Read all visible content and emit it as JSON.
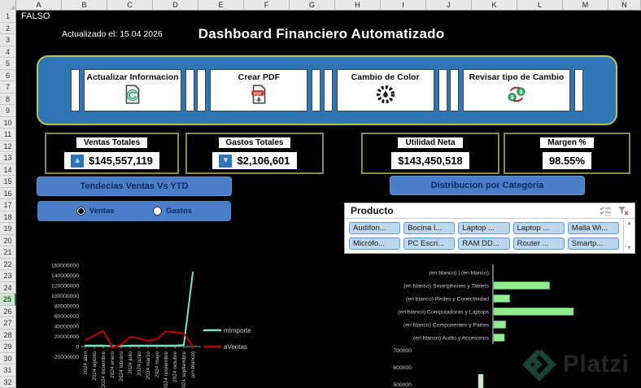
{
  "spreadsheet": {
    "columns": [
      "A",
      "B",
      "C",
      "D",
      "E",
      "F",
      "G",
      "H",
      "I",
      "J",
      "K",
      "L",
      "M",
      "N"
    ],
    "rows": [
      1,
      2,
      3,
      4,
      5,
      6,
      7,
      8,
      9,
      10,
      11,
      12,
      13,
      14,
      15,
      16,
      17,
      18,
      19,
      20,
      21,
      22,
      23,
      24,
      25,
      26,
      27,
      28,
      29,
      30,
      31,
      32
    ],
    "selected_row": 25
  },
  "header": {
    "cell_a1": "FALSO",
    "updated_label": "Actualizado el: 15 04 2026",
    "title": "Dashboard Financiero Automatizado"
  },
  "toolbar": {
    "buttons": [
      {
        "label": "Actualizar Informacion",
        "icon": "refresh-document-icon"
      },
      {
        "label": "Crear PDF",
        "icon": "pdf-download-icon"
      },
      {
        "label": "Cambio de Color",
        "icon": "color-wheel-icon"
      },
      {
        "label": "Revisar tipo de Cambio",
        "icon": "currency-exchange-icon"
      }
    ]
  },
  "kpis": [
    {
      "label": "Ventas Totales",
      "value": "$145,557,119",
      "trend": "up"
    },
    {
      "label": "Gastos Totales",
      "value": "$2,106,601",
      "trend": "down"
    },
    {
      "label": "Utilidad Neta",
      "value": "$143,450,518",
      "trend": "none"
    },
    {
      "label": "Margen %",
      "value": "98.55%",
      "trend": "none"
    }
  ],
  "nav_buttons": {
    "left": "Tendecias Ventas Vs YTD",
    "right": "Distribucion por Categoria"
  },
  "series_toggle": {
    "options": [
      {
        "label": "Ventas",
        "selected": true
      },
      {
        "label": "Gastos",
        "selected": false
      }
    ]
  },
  "slicer": {
    "title": "Producto",
    "items": [
      "Audífon...",
      "Bocina I...",
      "Laptop ...",
      "Laptop ...",
      "Malla Wi...",
      "Micrófo...",
      "PC Escri...",
      "RAM DD...",
      "Router ...",
      "Smartp..."
    ]
  },
  "watermark": {
    "text": "Platzi"
  },
  "colors": {
    "dashboard_bg": "#000000",
    "panel_blue": "#2e75b6",
    "panel_border": "#b5c74d",
    "button_blue": "#4a7ec8",
    "kpi_border": "#8b8b3d",
    "slicer_item_bg": "#bdd7ee",
    "line_importe": "#79e2c2",
    "line_ventas": "#c00000",
    "bar_green": "#90ee90",
    "column_green": "#cdeccd"
  },
  "chart_data": [
    {
      "type": "line",
      "title": "",
      "xlabel": "",
      "ylabel": "",
      "categories": [
        "2024 abril",
        "2024 agosto",
        "2024 diciembre",
        "2024 enero",
        "2024 febrero",
        "2024 julio",
        "2024 junio",
        "2024 marzo",
        "2024 mayo",
        "2024 noviembre",
        "2024 octubre",
        "2024 septiembre",
        "(en blanco)"
      ],
      "series": [
        {
          "name": "mImporte",
          "color": "#79e2c2",
          "values": [
            2000000,
            2000000,
            2000000,
            1000000,
            1000000,
            2000000,
            2000000,
            2000000,
            2000000,
            2000000,
            2000000,
            3000000,
            145557119
          ]
        },
        {
          "name": "aVentas",
          "color": "#c00000",
          "values": [
            12000000,
            22000000,
            31000000,
            -2000000,
            4000000,
            19000000,
            16000000,
            11000000,
            15000000,
            30000000,
            28000000,
            26000000,
            0
          ]
        }
      ],
      "ylim": [
        -20000000,
        160000000
      ],
      "ytick_step": 20000000,
      "grid": false,
      "legend_position": "right"
    },
    {
      "type": "bar",
      "orientation": "horizontal",
      "title": "",
      "categories": [
        "(en blanco) | (en blanco)",
        "(en blanco) Smartphones y Tablets",
        "(en blanco) Redes y Conectividad",
        "(en blanco) Computadoras y Laptops",
        "(en blanco) Componentes y Partes",
        "(en blanco) Audio y Accesorios"
      ],
      "values": [
        0,
        42000000,
        12000000,
        60000000,
        9000000,
        8000000
      ],
      "color": "#90ee90",
      "grid": false
    },
    {
      "type": "bar",
      "orientation": "vertical",
      "title": "",
      "categories": [
        ""
      ],
      "values": [
        571000
      ],
      "yticks": [
        700000,
        600000,
        500000
      ],
      "ylim": [
        500000,
        700000
      ],
      "color": "#cdeccd",
      "grid": false
    }
  ]
}
